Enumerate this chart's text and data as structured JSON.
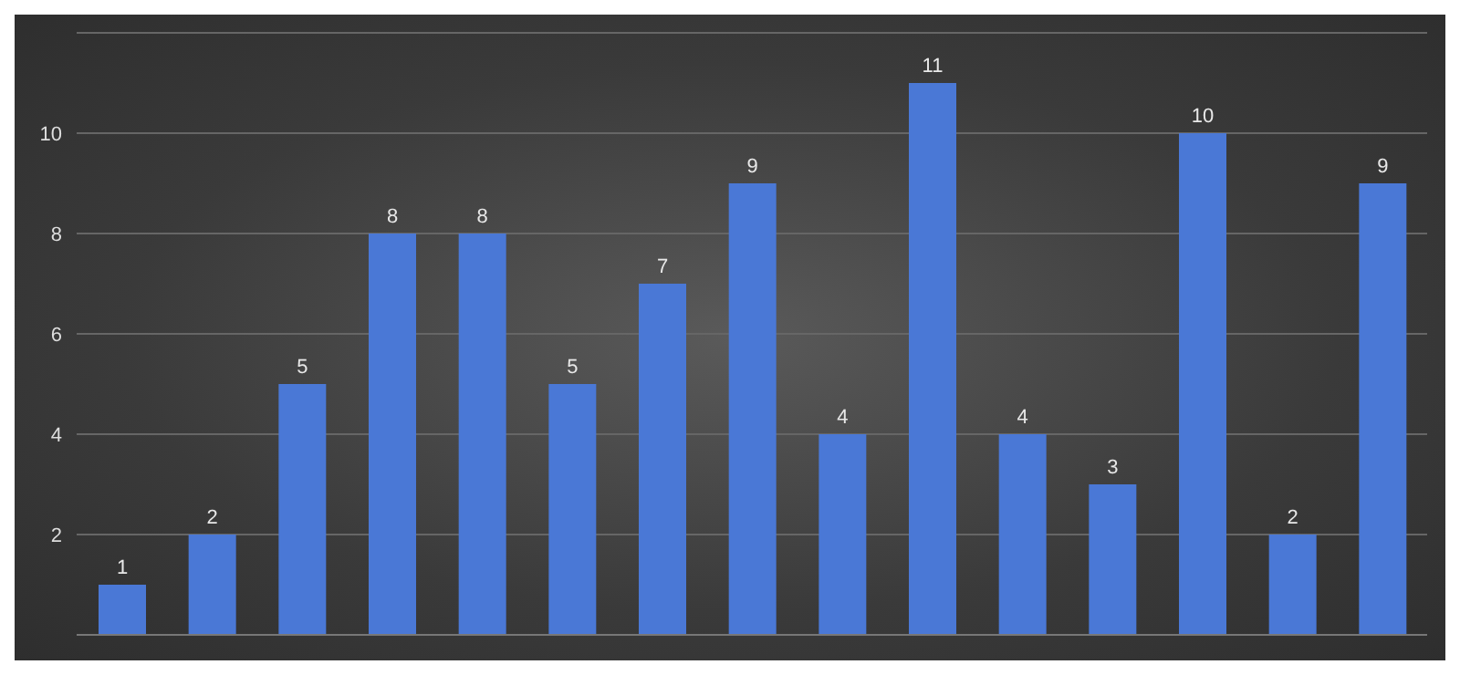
{
  "chart_data": {
    "type": "bar",
    "categories": [
      null,
      null,
      null,
      null,
      null,
      null,
      null,
      null,
      null,
      null,
      null,
      null,
      null,
      null,
      null
    ],
    "values": [
      1,
      2,
      5,
      8,
      8,
      5,
      7,
      9,
      4,
      11,
      4,
      3,
      10,
      2,
      9
    ],
    "color": "#4a78d6",
    "ylim": [
      0,
      12
    ],
    "yticks": [
      2,
      4,
      6,
      8,
      10
    ],
    "grid": "y",
    "data_labels": true,
    "tick_labels": "y",
    "legend": false
  }
}
